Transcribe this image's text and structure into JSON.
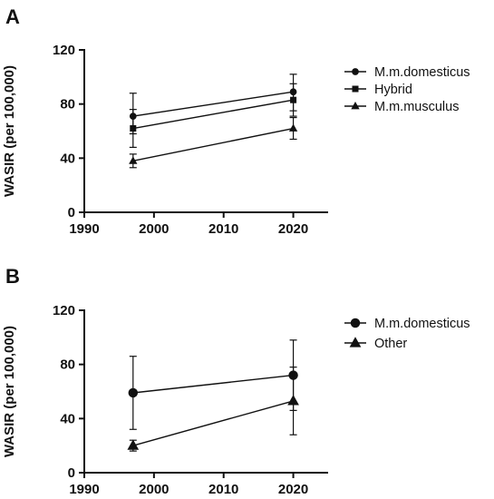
{
  "chart_data": [
    {
      "type": "line",
      "panel": "A",
      "xlabel": "",
      "ylabel": "WASIR (per 100,000)",
      "xlim": [
        1990,
        2025
      ],
      "ylim": [
        0,
        120
      ],
      "xticks": [
        "1990",
        "2000",
        "2010",
        "2020"
      ],
      "yticks": [
        "0",
        "40",
        "80",
        "120"
      ],
      "x": [
        1997,
        2020
      ],
      "grid": false,
      "legend_position": "right",
      "series": [
        {
          "name": "M.m.domesticus",
          "marker": "circle",
          "values": [
            71,
            89
          ],
          "err_low": [
            58,
            75
          ],
          "err_high": [
            88,
            102
          ]
        },
        {
          "name": "Hybrid",
          "marker": "square",
          "values": [
            62,
            83
          ],
          "err_low": [
            48,
            71
          ],
          "err_high": [
            76,
            95
          ]
        },
        {
          "name": "M.m.musculus",
          "marker": "triangle",
          "values": [
            38,
            62
          ],
          "err_low": [
            33,
            54
          ],
          "err_high": [
            43,
            70
          ]
        }
      ]
    },
    {
      "type": "line",
      "panel": "B",
      "xlabel": "",
      "ylabel": "WASIR (per 100,000)",
      "xlim": [
        1990,
        2025
      ],
      "ylim": [
        0,
        120
      ],
      "xticks": [
        "1990",
        "2000",
        "2010",
        "2020"
      ],
      "yticks": [
        "0",
        "40",
        "80",
        "120"
      ],
      "x": [
        1997,
        2020
      ],
      "grid": false,
      "legend_position": "right",
      "series": [
        {
          "name": "M.m.domesticus",
          "marker": "circle",
          "values": [
            59,
            72
          ],
          "err_low": [
            32,
            46
          ],
          "err_high": [
            86,
            98
          ]
        },
        {
          "name": "Other",
          "marker": "triangle",
          "values": [
            20,
            53
          ],
          "err_low": [
            16,
            28
          ],
          "err_high": [
            24,
            78
          ]
        }
      ]
    }
  ]
}
